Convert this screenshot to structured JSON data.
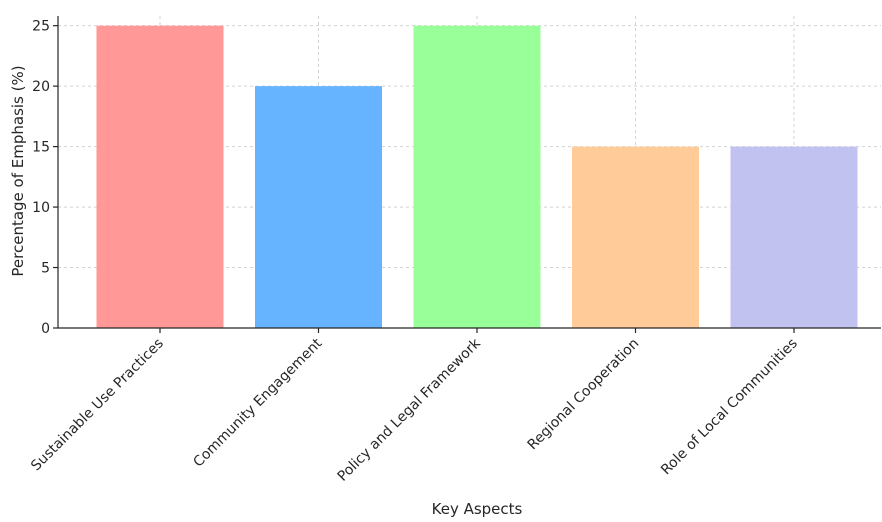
{
  "chart_data": {
    "type": "bar",
    "title": "",
    "xlabel": "Key Aspects",
    "ylabel": "Percentage of Emphasis (%)",
    "categories": [
      "Sustainable Use Practices",
      "Community Engagement",
      "Policy and Legal Framework",
      "Regional Cooperation",
      "Role of Local Communities"
    ],
    "values": [
      25,
      20,
      25,
      15,
      15
    ],
    "colors": [
      "#ff9896",
      "#66b3ff",
      "#99ff99",
      "#ffcc99",
      "#c2c2f0"
    ],
    "ylim": [
      0,
      25.8
    ],
    "yticks": [
      0,
      5,
      10,
      15,
      20,
      25
    ],
    "grid": true,
    "legend": "none"
  }
}
